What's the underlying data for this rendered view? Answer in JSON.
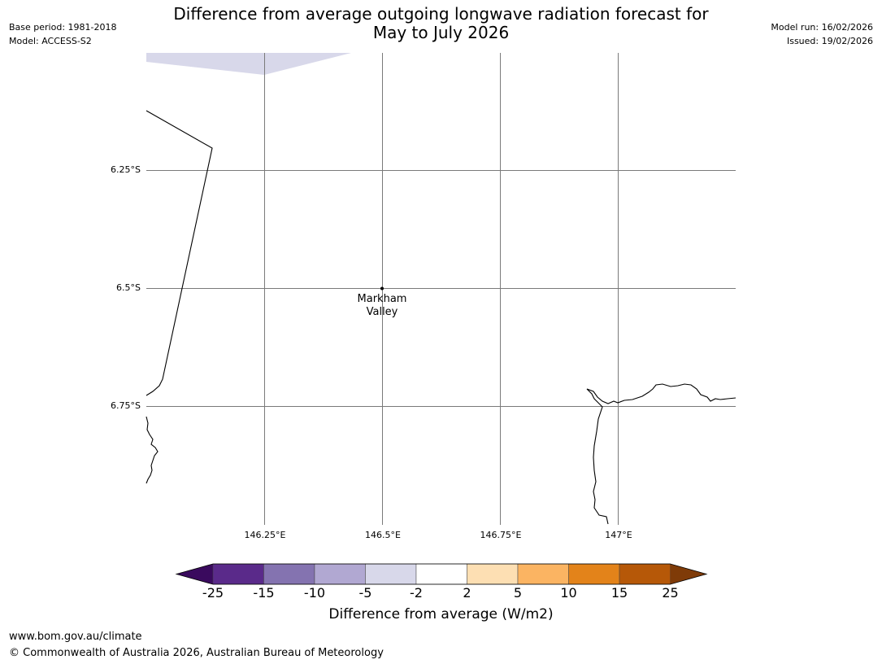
{
  "title_line1": "Difference from average outgoing longwave radiation forecast for",
  "title_line2": "May to July 2026",
  "meta": {
    "base_period": "Base period: 1981-2018",
    "model": "Model: ACCESS-S2",
    "model_run": "Model run: 16/02/2026",
    "issued": "Issued: 19/02/2026"
  },
  "map": {
    "latitude_labels": [
      "6.25°S",
      "6.5°S",
      "6.75°S"
    ],
    "longitude_labels": [
      "146.25°E",
      "146.5°E",
      "146.75°E",
      "147°E"
    ],
    "place": {
      "name_line1": "Markham",
      "name_line2": "Valley"
    }
  },
  "colorbar": {
    "ticks": [
      "-25",
      "-15",
      "-10",
      "-5",
      "-2",
      "2",
      "5",
      "10",
      "15",
      "25"
    ],
    "colors": [
      "#3a0a5e",
      "#5a2a8a",
      "#8473b0",
      "#b1a8d2",
      "#d8d8ea",
      "#ffffff",
      "#fddfb3",
      "#fbb462",
      "#e3831a",
      "#b65808",
      "#7f3b08"
    ],
    "label": "Difference from average (W/m2)"
  },
  "footer": {
    "url": "www.bom.gov.au/climate",
    "copyright": "© Commonwealth of Australia 2026, Australian Bureau of Meteorology"
  }
}
